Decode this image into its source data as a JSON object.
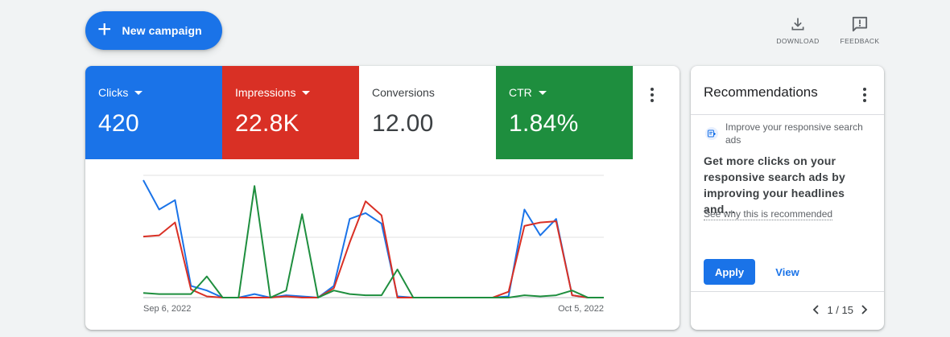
{
  "toolbar": {
    "new_campaign_label": "New campaign",
    "download_label": "DOWNLOAD",
    "feedback_label": "FEEDBACK"
  },
  "metrics": [
    {
      "label": "Clicks",
      "value": "420",
      "color": "#1a73e8",
      "has_dropdown": true
    },
    {
      "label": "Impressions",
      "value": "22.8K",
      "color": "#d93025",
      "has_dropdown": true
    },
    {
      "label": "Conversions",
      "value": "12.00",
      "color": "#ffffff",
      "has_dropdown": false
    },
    {
      "label": "CTR",
      "value": "1.84%",
      "color": "#1e8e3e",
      "has_dropdown": true
    }
  ],
  "chart_data": {
    "type": "line",
    "x_labels": [
      "Sep 6, 2022",
      "Oct 5, 2022"
    ],
    "points_count": 30,
    "grid": true,
    "series": [
      {
        "color": "#1a73e8",
        "values": [
          100,
          75,
          83,
          10,
          6,
          0,
          0,
          3,
          0,
          2,
          1,
          0,
          10,
          67,
          72,
          63,
          1,
          0,
          0,
          0,
          0,
          0,
          0,
          1,
          75,
          53,
          67,
          2,
          0,
          0
        ]
      },
      {
        "color": "#d93025",
        "values": [
          52,
          53,
          64,
          7,
          1,
          0,
          0,
          0,
          0,
          1,
          0,
          0,
          8,
          47,
          82,
          70,
          0,
          0,
          0,
          0,
          0,
          0,
          0,
          5,
          61,
          64,
          65,
          2,
          0,
          0
        ]
      },
      {
        "color": "#1e8e3e",
        "values": [
          4,
          3,
          3,
          3,
          18,
          0,
          0,
          95,
          0,
          6,
          71,
          0,
          6,
          3,
          2,
          2,
          24,
          0,
          0,
          0,
          0,
          0,
          0,
          0,
          2,
          1,
          2,
          6,
          0,
          0
        ]
      }
    ]
  },
  "recommendations": {
    "title": "Recommendations",
    "type_label": "Improve your responsive search ads",
    "description": "Get more clicks on your responsive search ads by improving your headlines and…",
    "reason_link": "See why this is recommended",
    "apply_label": "Apply",
    "view_label": "View",
    "pager_text": "1 / 15"
  },
  "icons": [
    "plus-icon",
    "download-icon",
    "feedback-icon",
    "more-vert-icon",
    "rsa-icon",
    "chevron-left-icon",
    "chevron-right-icon"
  ]
}
